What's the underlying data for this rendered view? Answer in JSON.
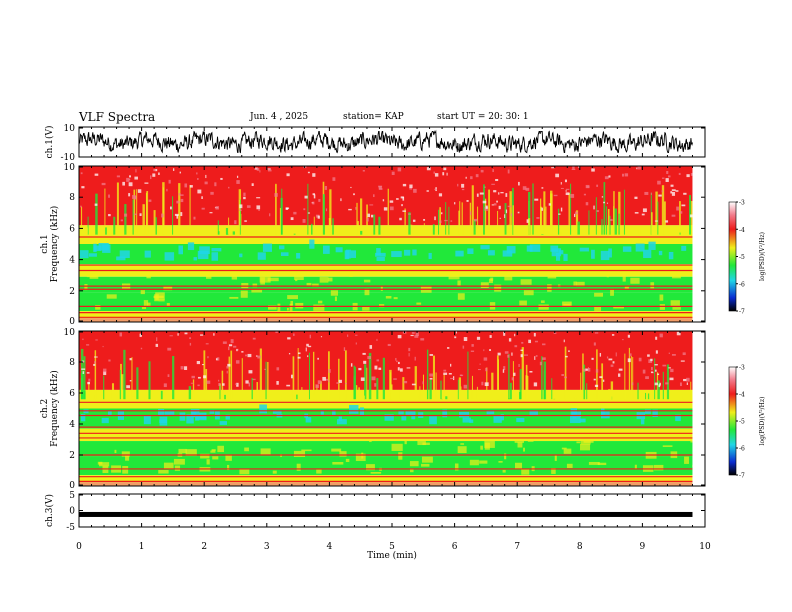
{
  "header": {
    "title": "VLF Spectra",
    "date": "Jun. 4 , 2025",
    "station": "station= KAP",
    "start": "start UT =  20: 30: 1"
  },
  "chart_data": [
    {
      "type": "line",
      "id": "ch1-waveform",
      "ylabel": "ch.1(V)",
      "ylim": [
        -10,
        10
      ],
      "yticks": [
        "10",
        "-10"
      ],
      "xlim": [
        0,
        10
      ],
      "description_values": "noisy waveform oscillating roughly between -6 and 6 V, data ends near 9.8 min"
    },
    {
      "type": "heatmap",
      "id": "ch1-spectrogram",
      "ylabel": "ch.1\nFrequency (kHz)",
      "ylim": [
        0,
        10
      ],
      "yticks": [
        "0",
        "2",
        "4",
        "6",
        "8",
        "10"
      ],
      "xlim": [
        0,
        10
      ],
      "colorbar": {
        "label": "log(PSD)(V²/Hz)",
        "range": [
          -7,
          -3
        ],
        "ticks": [
          "-3",
          "-4",
          "-5",
          "-6",
          "-7"
        ]
      }
    },
    {
      "type": "heatmap",
      "id": "ch2-spectrogram",
      "ylabel": "ch.2\nFrequency (kHz)",
      "ylim": [
        0,
        10
      ],
      "yticks": [
        "0",
        "2",
        "4",
        "6",
        "8",
        "10"
      ],
      "xlim": [
        0,
        10
      ],
      "colorbar": {
        "label": "log(PSD)(V²/Hz)",
        "range": [
          -7,
          -3
        ],
        "ticks": [
          "-3",
          "-4",
          "-5",
          "-6",
          "-7"
        ]
      }
    },
    {
      "type": "line",
      "id": "ch3-waveform",
      "ylabel": "ch.3(V)",
      "ylim": [
        -5,
        5
      ],
      "yticks": [
        "5",
        "0",
        "-5"
      ],
      "xlim": [
        0,
        10
      ],
      "level": -1.2
    }
  ],
  "xaxis": {
    "label": "Time (min)",
    "ticks": [
      "0",
      "1",
      "2",
      "3",
      "4",
      "5",
      "6",
      "7",
      "8",
      "9",
      "10"
    ]
  },
  "spectro_params": {
    "data_end_min": 9.8,
    "ch1_bands_khz": [
      0.3,
      0.6,
      1.0,
      2.1,
      2.3,
      3.3,
      3.65,
      5.45
    ],
    "ch2_bands_khz": [
      0.3,
      0.6,
      1.1,
      2.0,
      3.1,
      3.4,
      3.8,
      4.55,
      4.85,
      5.4
    ],
    "colors": {
      "red": "#ee1c1c",
      "pink": "#f27a8a",
      "yellow": "#f0ef1a",
      "green": "#21e83a",
      "cyan": "#20d6e6",
      "blue": "#0a2bd0",
      "white": "#ffffff"
    }
  }
}
